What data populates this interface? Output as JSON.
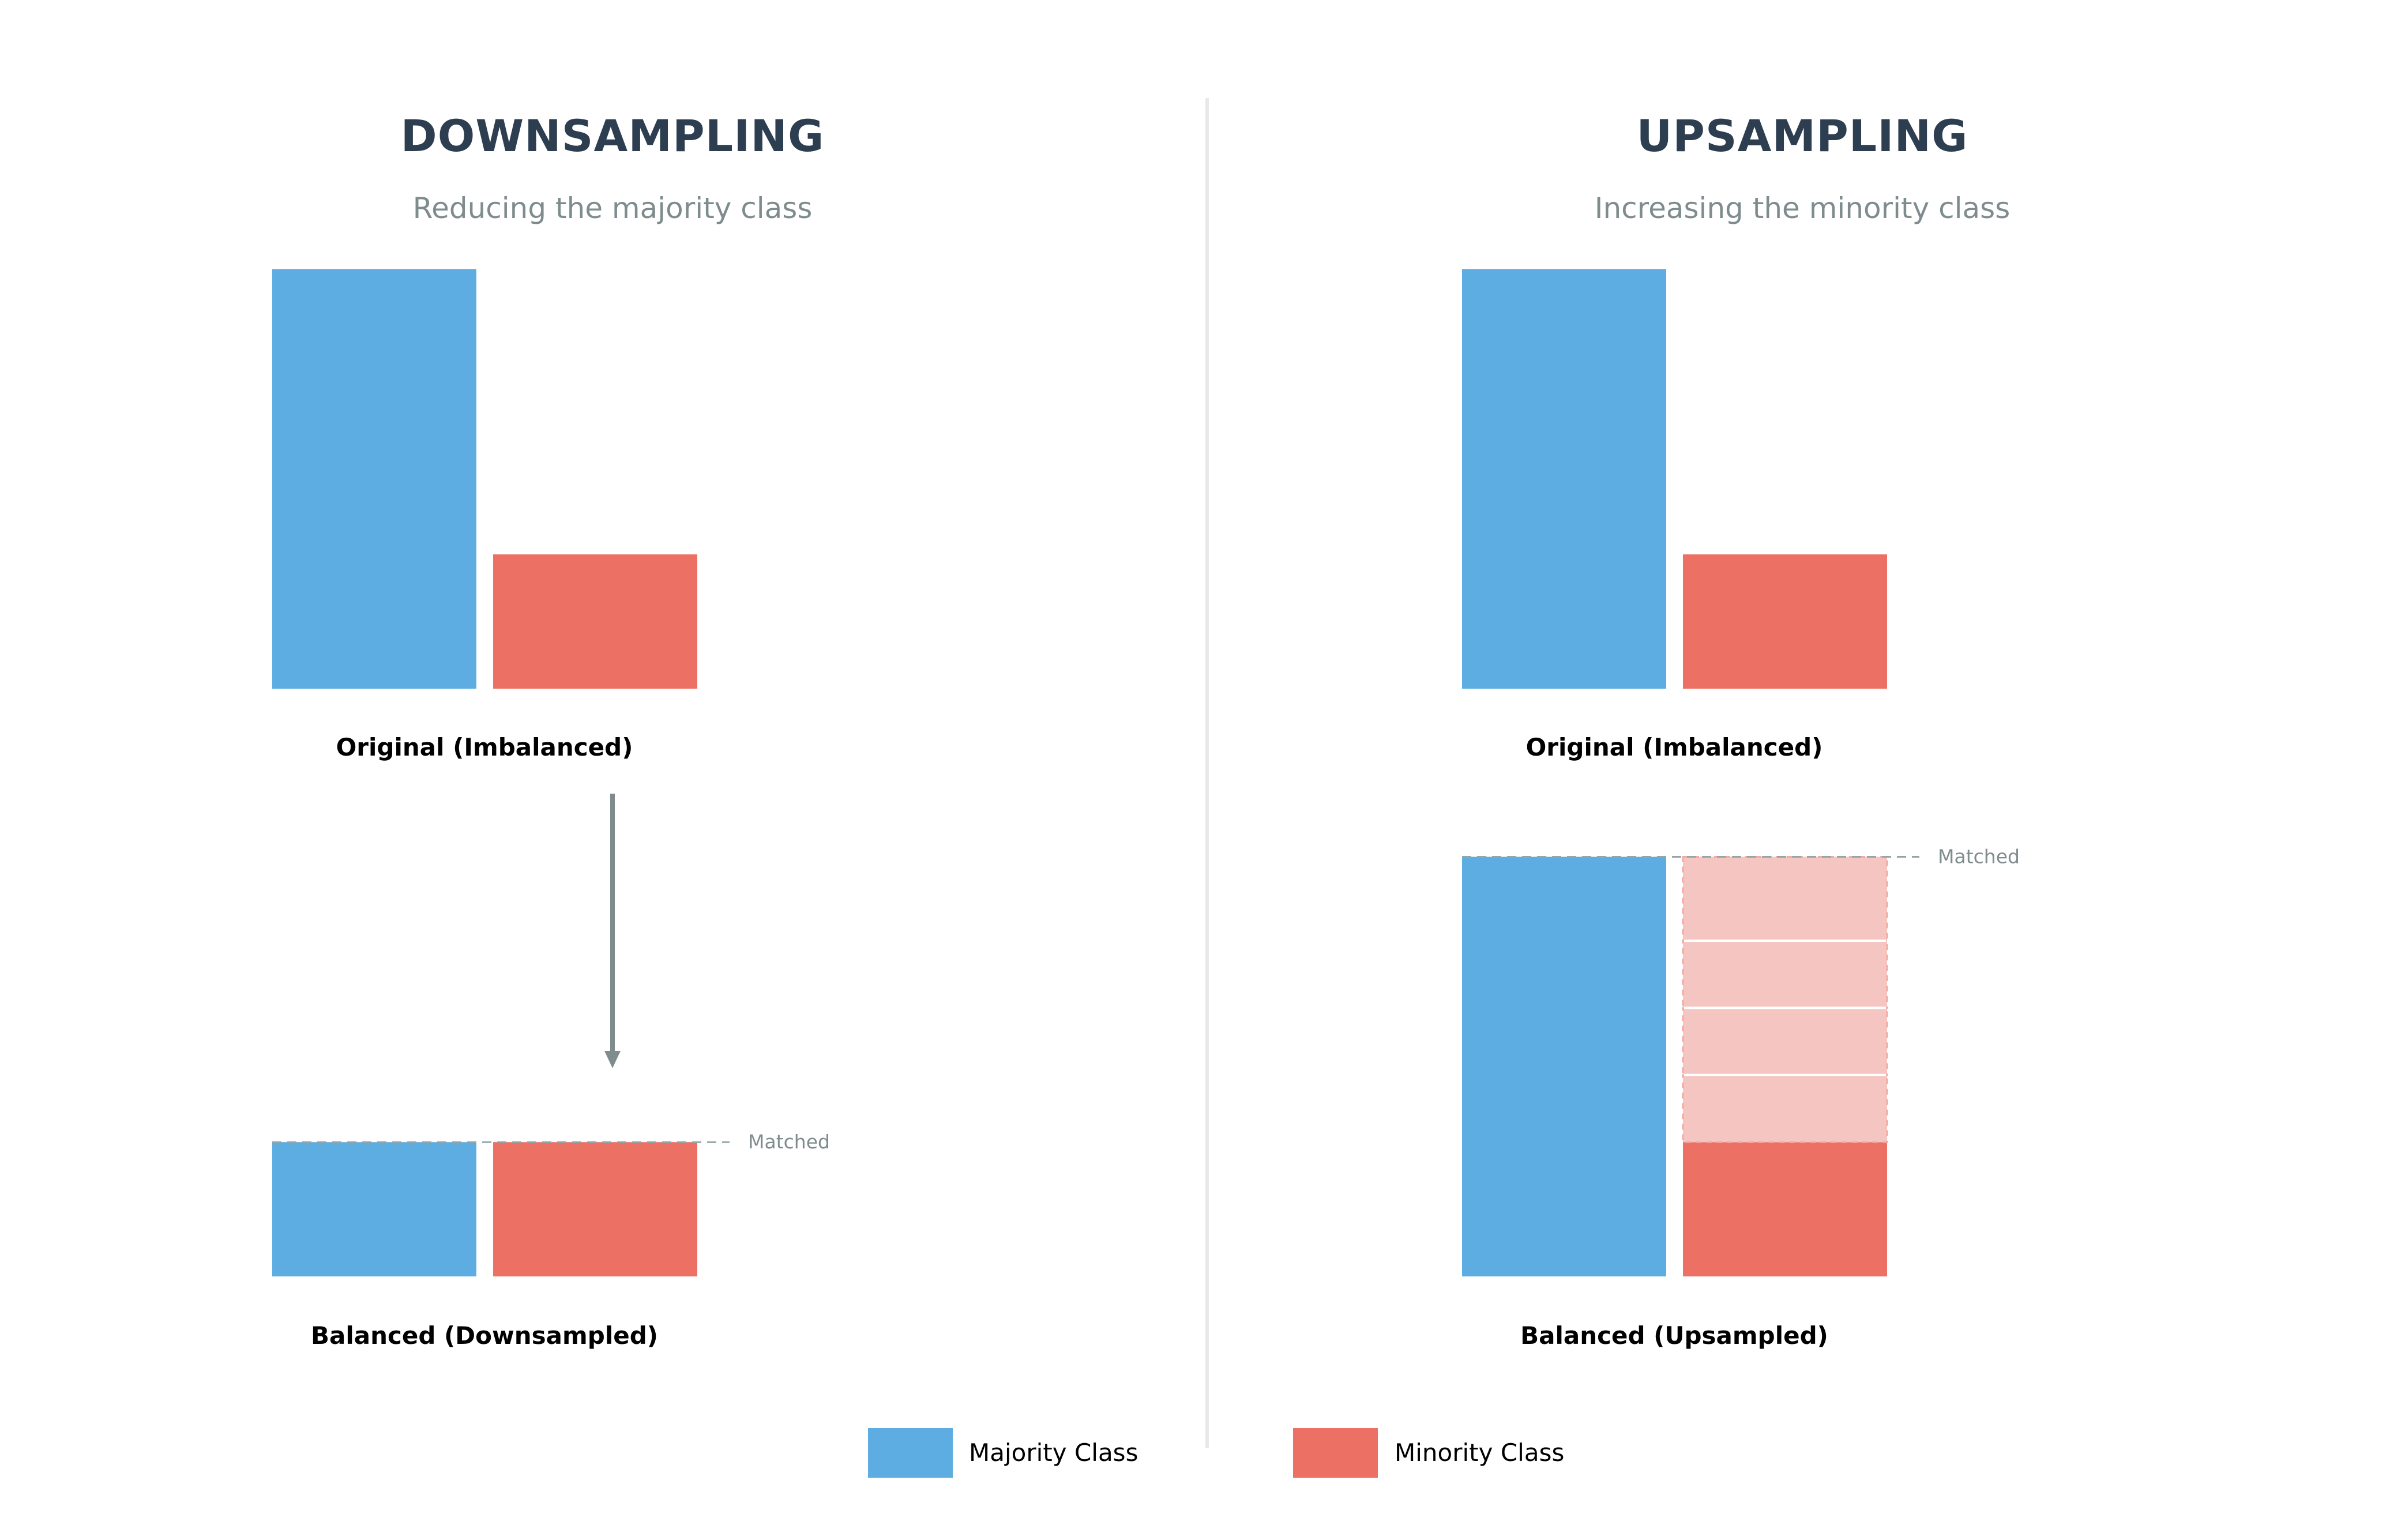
{
  "colors": {
    "majority": "#5DADE2",
    "minority": "#EC7063",
    "minority_synthetic": "#F5C6C1",
    "title": "#2C3E50",
    "subtitle": "#7F8C8D",
    "arrow": "#7F8C8D",
    "matched_line": "#95A5A6",
    "divider": "#E8E8E8",
    "caption": "#000000"
  },
  "downsampling": {
    "title": "DOWNSAMPLING",
    "subtitle": "Reducing the majority class",
    "original_caption": "Original (Imbalanced)",
    "balanced_caption": "Balanced (Downsampled)",
    "matched_label": "Matched",
    "original": {
      "majority": 1000,
      "minority": 320
    },
    "balanced": {
      "majority": 320,
      "minority": 320
    }
  },
  "upsampling": {
    "title": "UPSAMPLING",
    "subtitle": "Increasing the minority class",
    "original_caption": "Original (Imbalanced)",
    "balanced_caption": "Balanced (Upsampled)",
    "matched_label": "Matched",
    "original": {
      "majority": 1000,
      "minority": 320
    },
    "balanced": {
      "majority": 1000,
      "minority": 320,
      "synthetic_segments": [
        160,
        160,
        160,
        200
      ]
    }
  },
  "legend": {
    "majority_label": "Majority Class",
    "minority_label": "Minority Class"
  }
}
